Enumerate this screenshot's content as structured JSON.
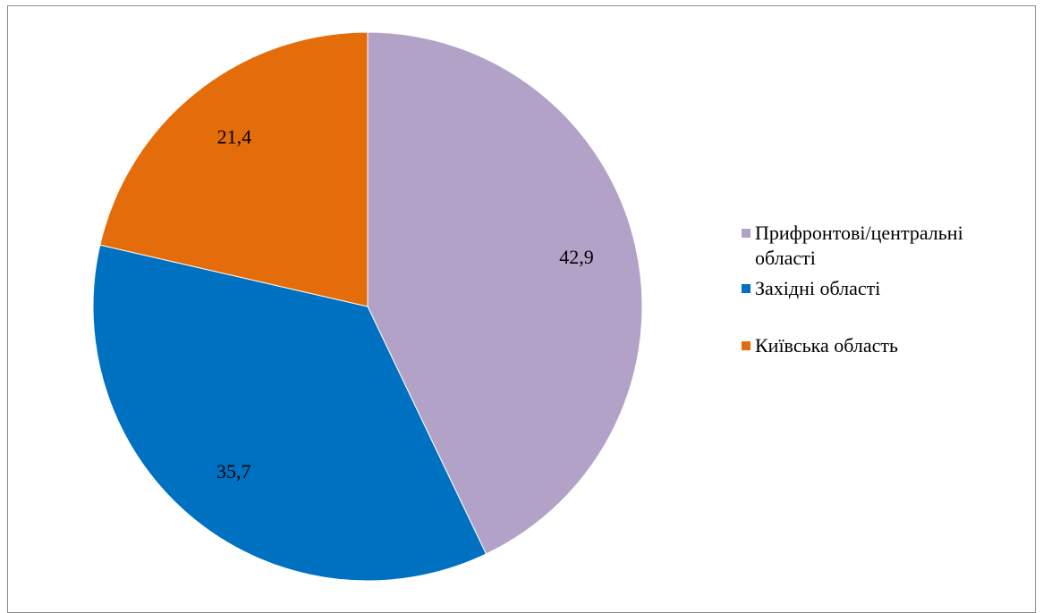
{
  "chart_data": {
    "type": "pie",
    "categories": [
      "Прифронтові/центральні області",
      "Західні області",
      "Київська область"
    ],
    "values": [
      42.9,
      35.7,
      21.4
    ],
    "data_labels": [
      "42,9",
      "35,7",
      "21,4"
    ],
    "colors": [
      "#b3a2c8",
      "#0070c0",
      "#e46c0a"
    ],
    "start_angle_deg": 0,
    "direction": "clockwise",
    "legend_position": "right",
    "title": ""
  },
  "legend": {
    "items": [
      {
        "label": "Прифронтові/центральні області",
        "color": "#b3a2c8"
      },
      {
        "label": "Західні області",
        "color": "#0070c0"
      },
      {
        "label": "Київська область",
        "color": "#e46c0a"
      }
    ]
  }
}
